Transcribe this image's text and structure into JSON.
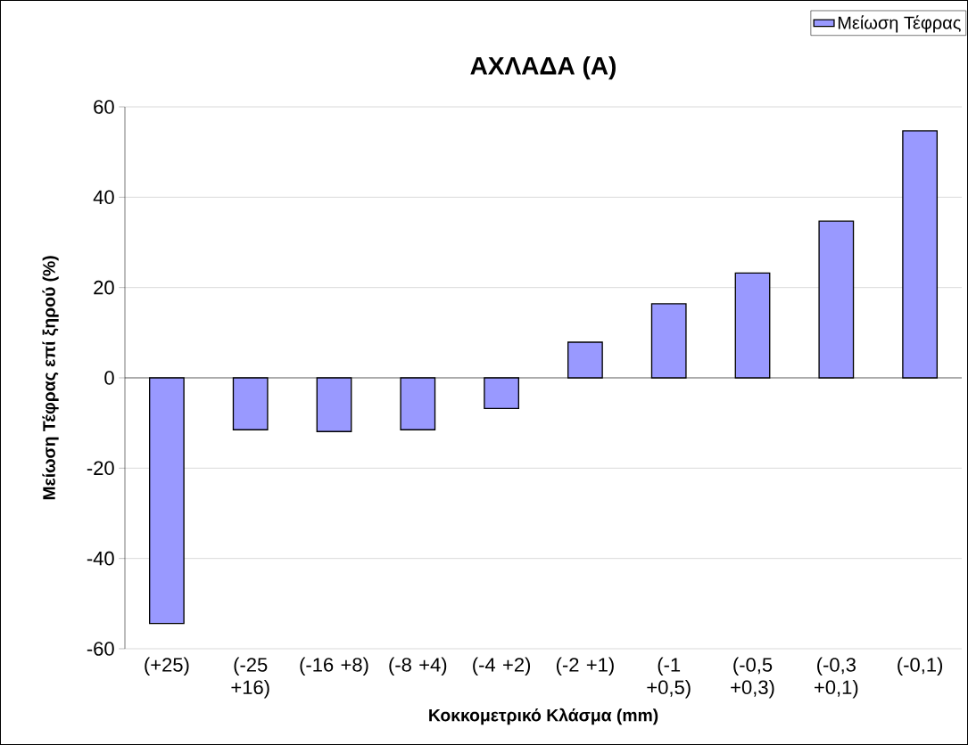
{
  "chart_data": {
    "type": "bar",
    "title": "ΑΧΛΑΔΑ (Α)",
    "xlabel": "Κοκκομετρικό Κλάσμα (mm)",
    "ylabel": "Μείωση Τέφρας επί ξηρού (%)",
    "categories": [
      "(+25)",
      "(-25 +16)",
      "(-16 +8)",
      "(-8 +4)",
      "(-4 +2)",
      "(-2 +1)",
      "(-1 +0,5)",
      "(-0,5 +0,3)",
      "(-0,3 +0,1)",
      "(-0,1)"
    ],
    "series": [
      {
        "name": "Μείωση Τέφρας",
        "color": "#9999ff",
        "values": [
          -54.4,
          -11.5,
          -11.9,
          -11.5,
          -6.8,
          7.9,
          16.4,
          23.2,
          34.7,
          54.7
        ]
      }
    ],
    "ylim": [
      -60,
      60
    ],
    "yticks": [
      -60,
      -40,
      -20,
      0,
      20,
      40,
      60
    ],
    "grid": "y",
    "legend": "top right"
  }
}
